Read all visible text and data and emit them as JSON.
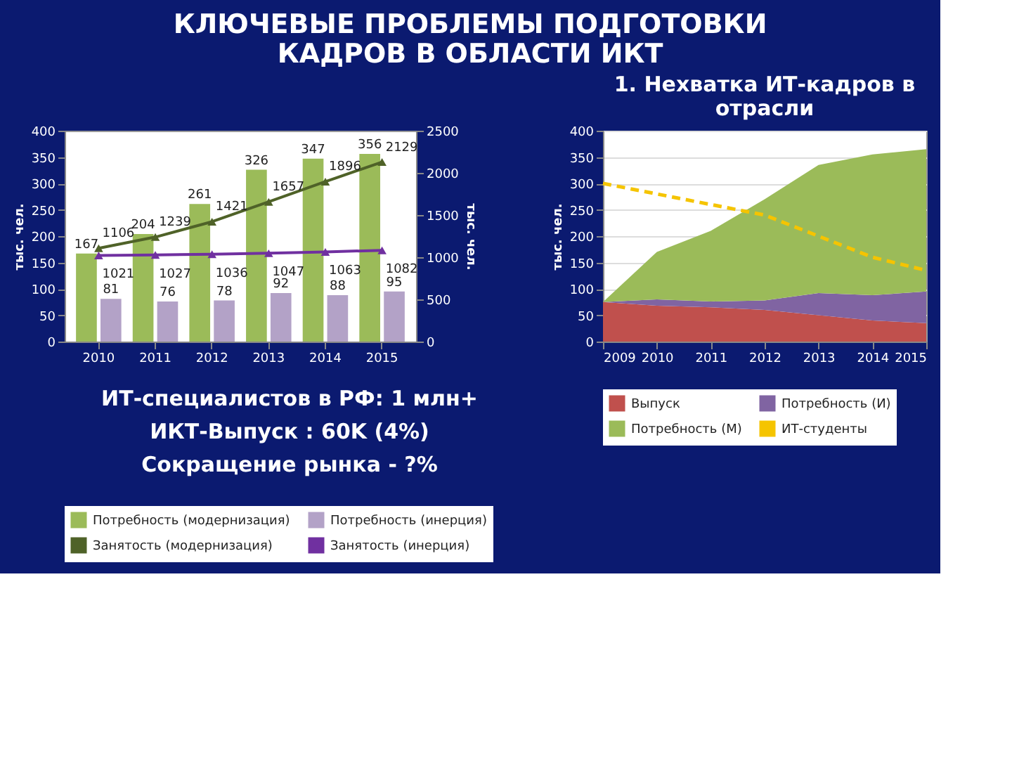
{
  "chart_data": [
    {
      "type": "other",
      "title": "КЛЮЧЕВЫЕ ПРОБЛЕМЫ ПОДГОТОВКИ КАДРОВ В ОБЛАСТИ ИКТ",
      "annotations": [
        "ИТ-специалистов в РФ: 1 млн+",
        "ИКТ-Выпуск :  60K (4%)",
        "Сокращение рынка - ?%"
      ]
    },
    {
      "type": "bar",
      "categories": [
        "2010",
        "2011",
        "2012",
        "2013",
        "2014",
        "2015"
      ],
      "ylabel": "тыс. чел.",
      "y2label": "тыс. чел.",
      "ylim": [
        0,
        400
      ],
      "yticks": [
        0,
        50,
        100,
        150,
        200,
        250,
        300,
        350,
        400
      ],
      "y2lim": [
        0,
        2500
      ],
      "y2ticks": [
        0,
        500,
        1000,
        1500,
        2000,
        2500
      ],
      "data_labels": true,
      "legend": "bottom",
      "marker": "triangle",
      "series": [
        {
          "name": "Потребность (модернизация)",
          "color": "#9bbb59",
          "values": [
            167,
            204,
            261,
            326,
            347,
            356
          ]
        },
        {
          "name": "Потребность (инерция)",
          "color": "#b3a2c7",
          "values": [
            81,
            76,
            78,
            92,
            88,
            95
          ]
        },
        {
          "name": "Занятость (модернизация)",
          "type": "line",
          "axis": "y2",
          "color": "#4f6228",
          "values": [
            1106,
            1239,
            1421,
            1657,
            1896,
            2129
          ]
        },
        {
          "name": "Занятость (инерция)",
          "type": "line",
          "axis": "y2",
          "color": "#7030a0",
          "values": [
            1021,
            1027,
            1036,
            1047,
            1063,
            1082
          ]
        }
      ]
    },
    {
      "type": "area",
      "title": "1. Нехватка ИТ-кадров в отрасли",
      "ylabel": "тыс. чел.",
      "x": [
        2009,
        2010,
        2011,
        2012,
        2013,
        2014,
        2015
      ],
      "xlim": [
        2009,
        2015
      ],
      "xticks": [
        2009,
        2010,
        2011,
        2012,
        2013,
        2014,
        2015
      ],
      "ylim": [
        0,
        400
      ],
      "yticks": [
        0,
        50,
        100,
        150,
        200,
        250,
        300,
        350,
        400
      ],
      "stacked": true,
      "grid": "y",
      "legend": "bottom",
      "series": [
        {
          "name": "Выпуск",
          "color": "#c0504d",
          "values": [
            75,
            68,
            65,
            60,
            50,
            40,
            35
          ]
        },
        {
          "name": "Потребность (И)",
          "color": "#8064a2",
          "values": [
            0,
            12,
            11,
            18,
            42,
            48,
            60
          ]
        },
        {
          "name": "Потребность (М)",
          "color": "#9bbb59",
          "values": [
            0,
            90,
            134,
            192,
            243,
            267,
            270
          ]
        },
        {
          "name": "ИТ-студенты",
          "type": "line",
          "line_style": "dashed",
          "color": "#f5c400",
          "values": [
            300,
            280,
            260,
            240,
            200,
            160,
            135
          ]
        }
      ]
    }
  ]
}
